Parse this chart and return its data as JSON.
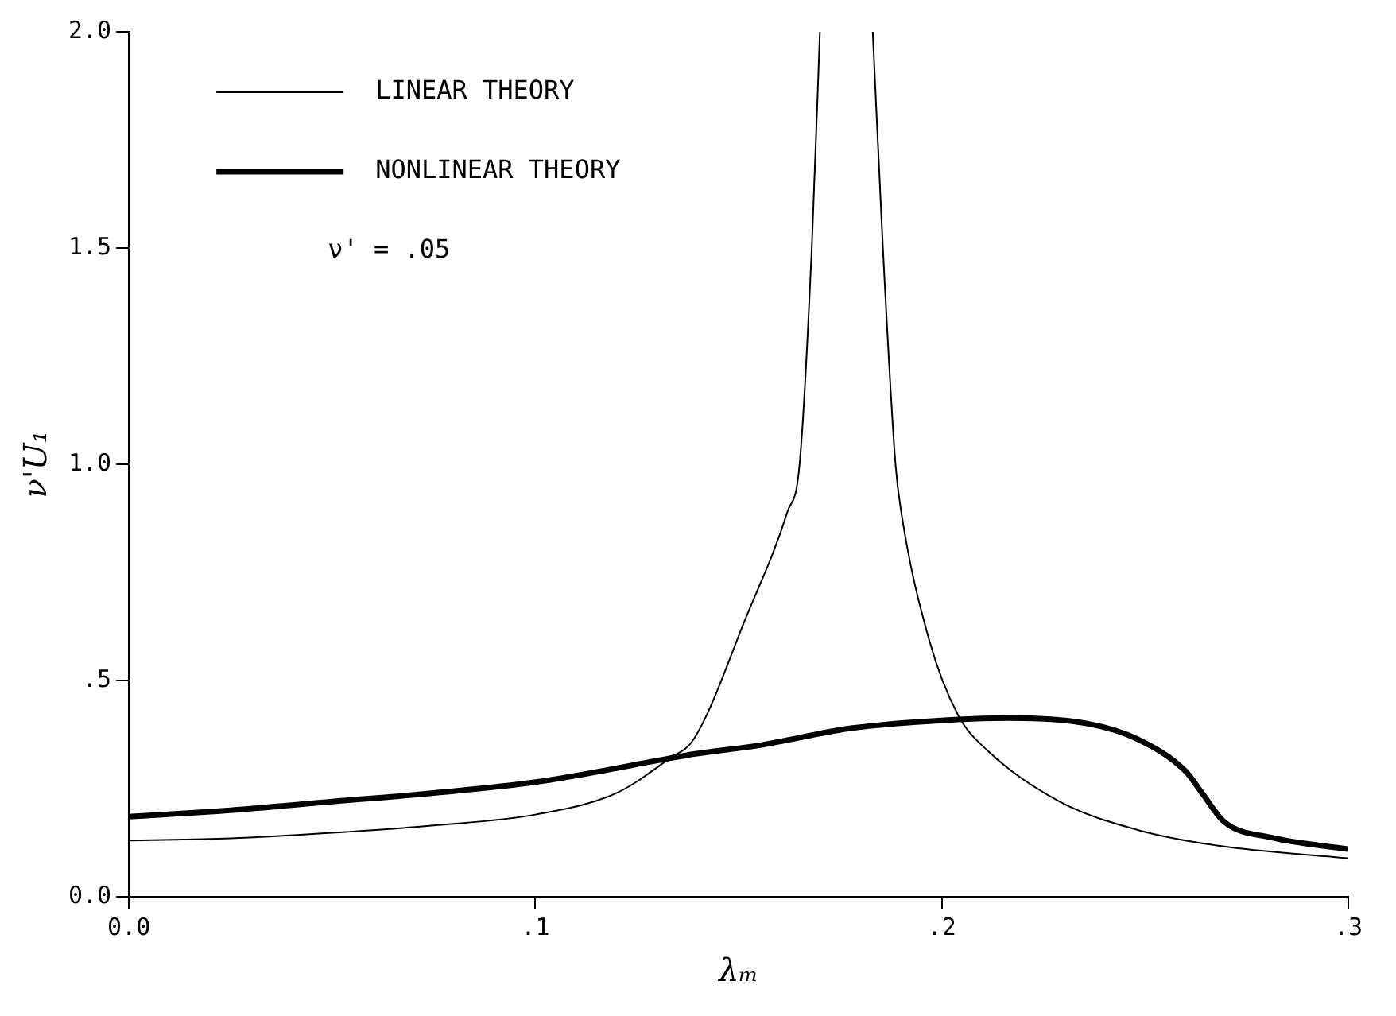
{
  "chart_data": {
    "type": "line",
    "xlabel": "λₘ",
    "ylabel": "ν'U₁",
    "legend": "top left",
    "grid": false,
    "marker": "none",
    "line_style": "solid",
    "xlim": [
      0,
      0.3
    ],
    "xticks": [
      {
        "value": 0,
        "label": "0.0"
      },
      {
        "value": 0.1,
        "label": ".1"
      },
      {
        "value": 0.2,
        "label": ".2"
      },
      {
        "value": 0.3,
        "label": ".3"
      }
    ],
    "ylim": [
      0,
      2
    ],
    "yticks": [
      {
        "value": 0,
        "label": "0.0"
      },
      {
        "value": 0.5,
        "label": ".5"
      },
      {
        "value": 1,
        "label": "1.0"
      },
      {
        "value": 1.5,
        "label": "1.5"
      },
      {
        "value": 2,
        "label": "2.0"
      }
    ],
    "annotations": [
      "ν' = .05"
    ],
    "series": [
      {
        "name": "LINEAR THEORY",
        "color": "#000000",
        "x": [
          0,
          0.025,
          0.05,
          0.075,
          0.1,
          0.12,
          0.133,
          0.139,
          0.152,
          0.162,
          0.165,
          0.168,
          0.17,
          0.177,
          0.183,
          0.1855,
          0.1886,
          0.19,
          0.197,
          0.204,
          0.211,
          0.229,
          0.248,
          0.268,
          0.3
        ],
        "values": [
          0.13,
          0.135,
          0.148,
          0.165,
          0.19,
          0.24,
          0.32,
          0.365,
          0.65,
          0.89,
          1.0,
          1.5,
          2.0,
          null,
          2.0,
          1.5,
          1.0,
          0.89,
          0.59,
          0.42,
          0.34,
          0.22,
          0.155,
          0.118,
          0.089
        ]
      },
      {
        "name": "NONLINEAR THEORY",
        "color": "#000000",
        "x": [
          0,
          0.025,
          0.05,
          0.075,
          0.1,
          0.133,
          0.139,
          0.155,
          0.178,
          0.204,
          0.216,
          0.236,
          0.248,
          0.26,
          0.264,
          0.2695,
          0.281,
          0.3
        ],
        "values": [
          0.185,
          0.2,
          0.22,
          0.24,
          0.265,
          0.32,
          0.33,
          0.35,
          0.39,
          0.41,
          0.413,
          0.4,
          0.365,
          0.29,
          0.24,
          0.173,
          0.137,
          0.11
        ]
      }
    ]
  }
}
